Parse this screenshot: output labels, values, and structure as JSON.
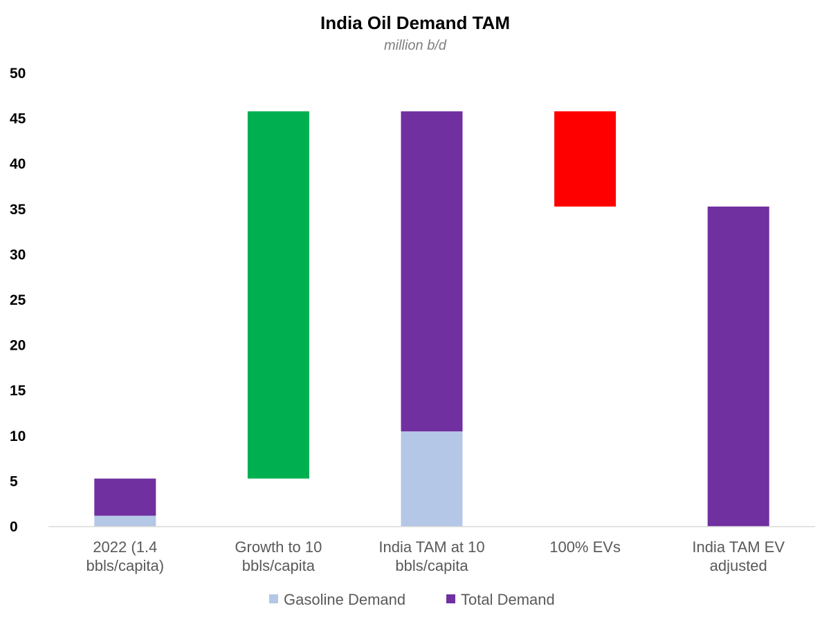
{
  "chart_data": {
    "type": "bar",
    "title": "India Oil Demand TAM",
    "subtitle": "million b/d",
    "xlabel": "",
    "ylabel": "",
    "ylim": [
      0,
      50
    ],
    "yticks": [
      "0",
      "5",
      "10",
      "15",
      "20",
      "25",
      "30",
      "35",
      "40",
      "45",
      "50"
    ],
    "grid": false,
    "legend_position": "bottom",
    "categories": [
      [
        "2022 (1.4",
        "bbls/capita)"
      ],
      [
        "Growth to 10",
        "bbls/capita"
      ],
      [
        "India TAM at 10",
        "bbls/capita"
      ],
      [
        "100% EVs"
      ],
      [
        "India TAM EV",
        "adjusted"
      ]
    ],
    "series": [
      {
        "name": "Gasoline Demand",
        "color": "#b4c7e7",
        "values": [
          1.2,
          0,
          10.5,
          0,
          0
        ]
      },
      {
        "name": "Total Demand",
        "color": "#7030a0",
        "values": [
          4.1,
          0,
          35.3,
          0,
          35.3
        ]
      }
    ],
    "waterfall_bars": [
      {
        "category_index": 1,
        "from": 5.3,
        "to": 45.8,
        "color": "#00b050"
      },
      {
        "category_index": 3,
        "from": 35.3,
        "to": 45.8,
        "color": "#ff0000"
      }
    ]
  }
}
